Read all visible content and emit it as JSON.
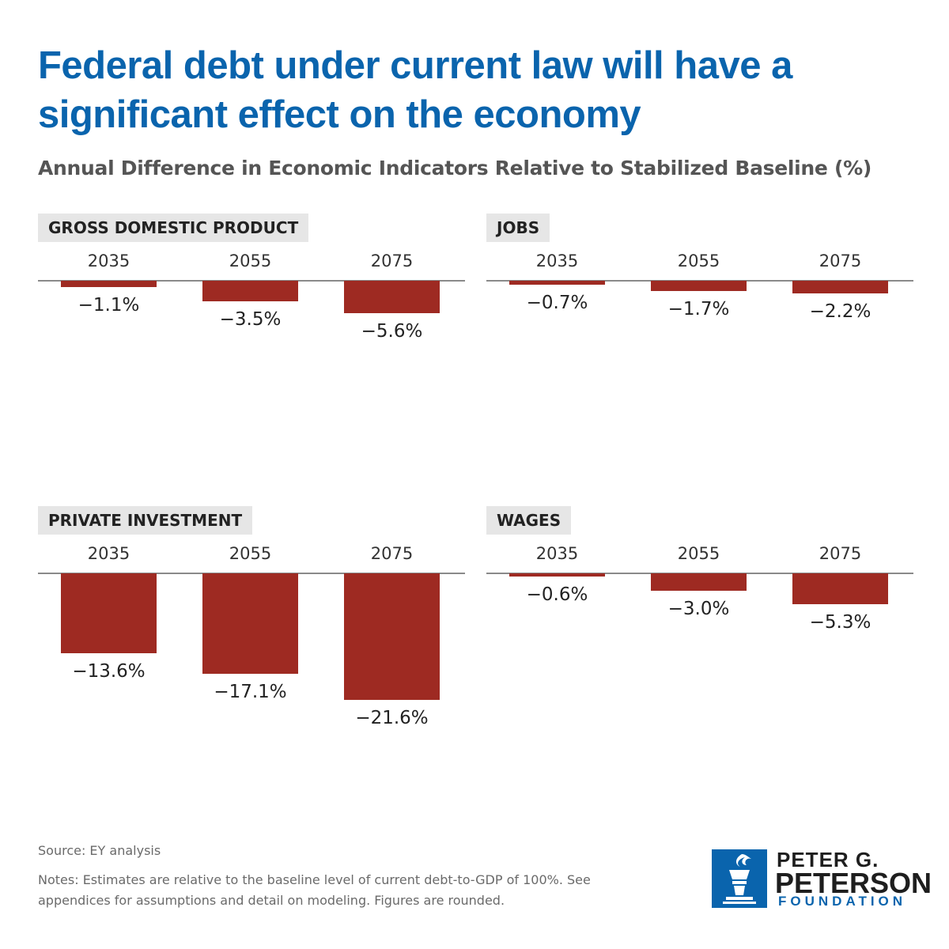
{
  "title": "Federal debt under current law will have a significant effect on the economy",
  "subtitle": "Annual Difference in Economic Indicators Relative to Stabilized Baseline (%)",
  "source": "Source: EY analysis",
  "notes": "Notes: Estimates are relative to the baseline level of current debt-to-GDP of 100%. See appendices for assumptions and detail on modeling. Figures are rounded.",
  "logo": {
    "line1": "PETER G.",
    "line2": "PETERSON",
    "line3": "FOUNDATION",
    "icon": "torch-icon"
  },
  "colors": {
    "title": "#0a64ad",
    "bar": "#9e2a22",
    "label_bg": "#e6e6e6"
  },
  "chart_data": [
    {
      "type": "bar",
      "title": "GROSS DOMESTIC PRODUCT",
      "categories": [
        "2035",
        "2055",
        "2075"
      ],
      "values": [
        -1.1,
        -3.5,
        -5.6
      ],
      "labels": [
        "−1.1%",
        "−3.5%",
        "−5.6%"
      ]
    },
    {
      "type": "bar",
      "title": "JOBS",
      "categories": [
        "2035",
        "2055",
        "2075"
      ],
      "values": [
        -0.7,
        -1.7,
        -2.2
      ],
      "labels": [
        "−0.7%",
        "−1.7%",
        "−2.2%"
      ]
    },
    {
      "type": "bar",
      "title": "PRIVATE INVESTMENT",
      "categories": [
        "2035",
        "2055",
        "2075"
      ],
      "values": [
        -13.6,
        -17.1,
        -21.6
      ],
      "labels": [
        "−13.6%",
        "−17.1%",
        "−21.6%"
      ]
    },
    {
      "type": "bar",
      "title": "WAGES",
      "categories": [
        "2035",
        "2055",
        "2075"
      ],
      "values": [
        -0.6,
        -3.0,
        -5.3
      ],
      "labels": [
        "−0.6%",
        "−3.0%",
        "−5.3%"
      ]
    }
  ]
}
